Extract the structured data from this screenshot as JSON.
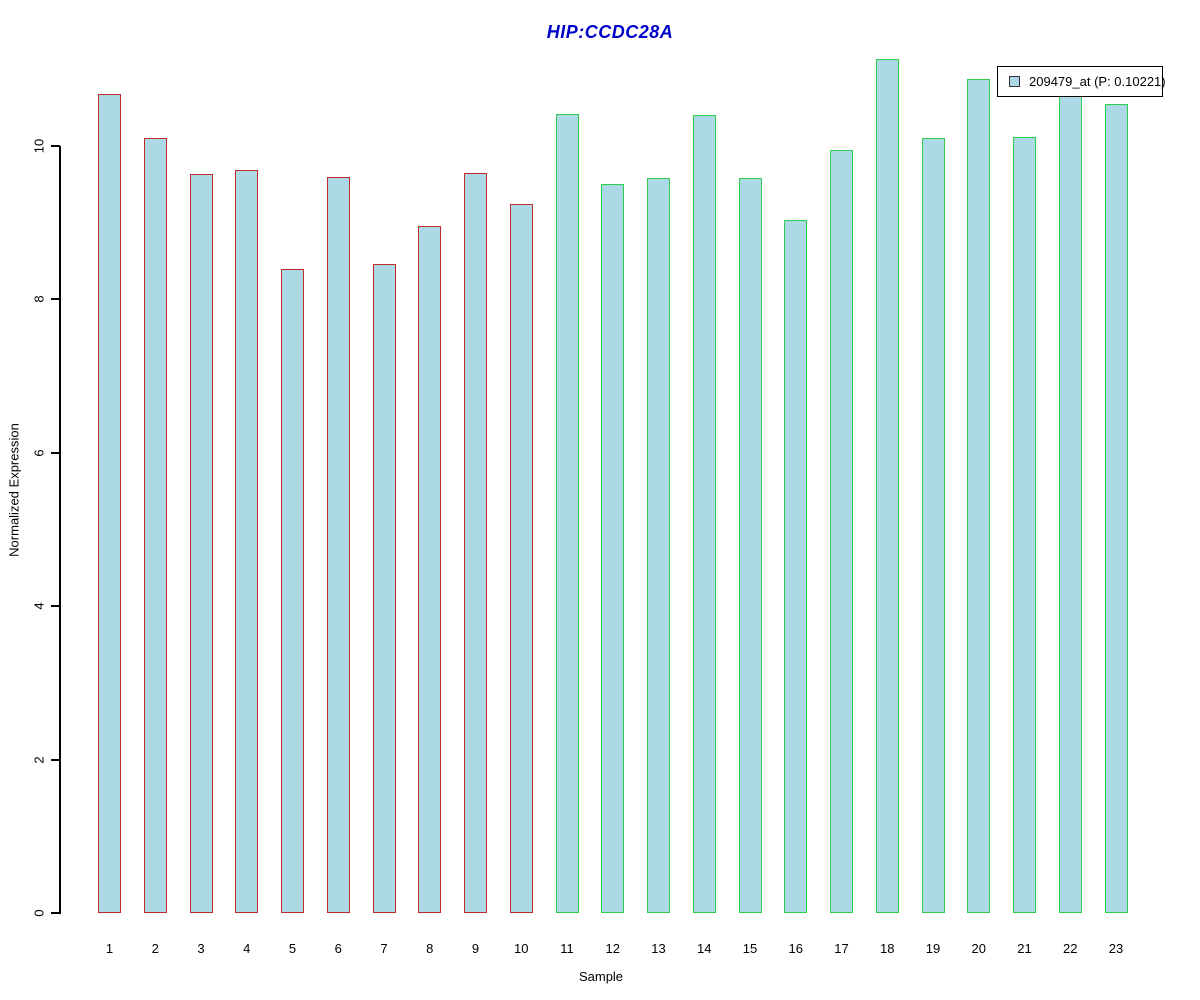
{
  "colors": {
    "title": "#0000CC",
    "bar_fill": "#ADD8E6",
    "group1_border": "#C22B2B",
    "group2_border": "#2FCE4B",
    "axis": "#000000",
    "legend_swatch_border": "#333333"
  },
  "legend": {
    "label": "209479_at (P: 0.10221)",
    "position": "top-right"
  },
  "chart_data": {
    "type": "bar",
    "title": "HIP:CCDC28A",
    "xlabel": "Sample",
    "ylabel": "Normalized Expression",
    "ylim": [
      0,
      11.2
    ],
    "yticks": [
      0,
      2,
      4,
      6,
      8,
      10
    ],
    "grid": false,
    "legend_position": "top-right",
    "categories": [
      "1",
      "2",
      "3",
      "4",
      "5",
      "6",
      "7",
      "8",
      "9",
      "10",
      "11",
      "12",
      "13",
      "14",
      "15",
      "16",
      "17",
      "18",
      "19",
      "20",
      "21",
      "22",
      "23"
    ],
    "series": [
      {
        "name": "209479_at (P: 0.10221)",
        "values": [
          10.68,
          10.11,
          9.64,
          9.69,
          8.4,
          9.6,
          8.46,
          8.96,
          9.65,
          9.24,
          10.42,
          9.51,
          9.58,
          10.41,
          9.58,
          9.03,
          9.95,
          11.13,
          10.11,
          10.87,
          10.12,
          10.75,
          10.55
        ]
      }
    ],
    "bar_groups": [
      {
        "name": "group-red",
        "range": [
          1,
          10
        ],
        "border_color": "#C22B2B"
      },
      {
        "name": "group-green",
        "range": [
          11,
          23
        ],
        "border_color": "#2FCE4B"
      }
    ],
    "bar_fill": "#ADD8E6"
  }
}
